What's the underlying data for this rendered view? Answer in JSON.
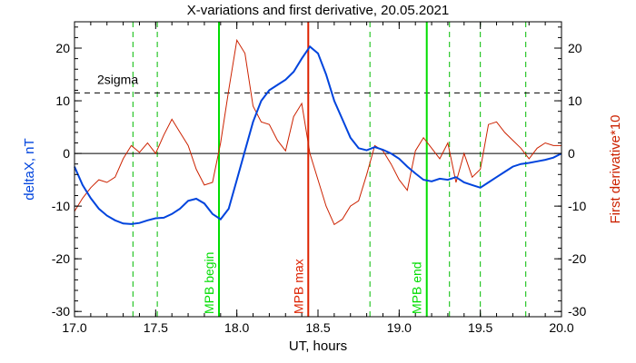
{
  "chart_data": {
    "type": "line",
    "title": "X-variations and first derivative, 20.05.2021",
    "xlabel": "UT, hours",
    "ylabel_left": "deltaX, nT",
    "ylabel_right": "First derivative*10",
    "xlim": [
      17.0,
      20.0
    ],
    "ylim": [
      -31,
      25
    ],
    "x_ticks": [
      17.0,
      17.5,
      18.0,
      18.5,
      19.0,
      19.5,
      20.0
    ],
    "x_tick_labels": [
      "17.0",
      "17.5",
      "18.0",
      "18.5",
      "19.0",
      "19.5",
      "20.0"
    ],
    "y_ticks": [
      -30,
      -20,
      -10,
      0,
      10,
      20
    ],
    "y_tick_labels": [
      "-30",
      "-20",
      "-10",
      "0",
      "10",
      "20"
    ],
    "threshold": {
      "label": "2sigma",
      "value": 11.5
    },
    "series": [
      {
        "name": "deltaX, nT",
        "color": "#0044dd",
        "x": [
          17.0,
          17.05,
          17.1,
          17.15,
          17.2,
          17.25,
          17.3,
          17.35,
          17.4,
          17.45,
          17.5,
          17.55,
          17.6,
          17.65,
          17.7,
          17.75,
          17.8,
          17.85,
          17.9,
          17.95,
          18.0,
          18.05,
          18.1,
          18.15,
          18.2,
          18.25,
          18.3,
          18.35,
          18.4,
          18.45,
          18.5,
          18.55,
          18.6,
          18.65,
          18.7,
          18.75,
          18.8,
          18.85,
          18.9,
          18.95,
          19.0,
          19.05,
          19.1,
          19.15,
          19.2,
          19.25,
          19.3,
          19.35,
          19.4,
          19.45,
          19.5,
          19.55,
          19.6,
          19.65,
          19.7,
          19.75,
          19.8,
          19.85,
          19.9,
          19.95,
          20.0
        ],
        "y": [
          -2.5,
          -6.0,
          -8.5,
          -10.5,
          -11.8,
          -12.7,
          -13.3,
          -13.4,
          -13.2,
          -12.7,
          -12.3,
          -12.2,
          -11.5,
          -10.5,
          -9.0,
          -8.6,
          -9.5,
          -11.5,
          -12.5,
          -10.5,
          -5.0,
          0.5,
          6.0,
          10.0,
          12.0,
          13.0,
          14.0,
          15.5,
          18.0,
          20.3,
          19.0,
          15.0,
          10.0,
          6.5,
          3.0,
          1.0,
          0.6,
          1.2,
          0.7,
          0.0,
          -1.0,
          -2.5,
          -3.8,
          -5.0,
          -5.3,
          -4.8,
          -5.0,
          -4.5,
          -5.5,
          -6.0,
          -6.5,
          -5.5,
          -4.5,
          -3.5,
          -2.5,
          -2.0,
          -1.8,
          -1.5,
          -1.2,
          -0.8,
          0.0
        ]
      },
      {
        "name": "First derivative*10",
        "color": "#cc2200",
        "x": [
          17.0,
          17.05,
          17.1,
          17.15,
          17.2,
          17.25,
          17.3,
          17.35,
          17.4,
          17.45,
          17.5,
          17.55,
          17.6,
          17.65,
          17.7,
          17.75,
          17.8,
          17.85,
          17.9,
          17.95,
          18.0,
          18.05,
          18.1,
          18.15,
          18.2,
          18.25,
          18.3,
          18.35,
          18.4,
          18.45,
          18.5,
          18.55,
          18.6,
          18.65,
          18.7,
          18.75,
          18.8,
          18.85,
          18.9,
          18.95,
          19.0,
          19.05,
          19.1,
          19.15,
          19.2,
          19.25,
          19.3,
          19.35,
          19.4,
          19.45,
          19.5,
          19.55,
          19.6,
          19.65,
          19.7,
          19.75,
          19.8,
          19.85,
          19.9,
          19.95,
          20.0
        ],
        "y": [
          -11.0,
          -8.5,
          -6.5,
          -5.0,
          -5.5,
          -4.5,
          -1.0,
          1.5,
          0.2,
          2.0,
          0.0,
          3.5,
          6.5,
          4.0,
          1.5,
          -3.0,
          -6.0,
          -5.5,
          2.0,
          12.0,
          21.5,
          19.0,
          9.0,
          6.0,
          5.5,
          2.5,
          0.5,
          7.0,
          9.5,
          0.0,
          -5.0,
          -10.0,
          -13.5,
          -12.5,
          -10.0,
          -9.0,
          -4.0,
          1.5,
          0.5,
          -2.0,
          -5.0,
          -7.0,
          0.5,
          3.0,
          1.0,
          -1.0,
          2.0,
          -5.5,
          0.0,
          -4.5,
          -3.0,
          5.5,
          6.0,
          4.0,
          2.5,
          1.0,
          -1.0,
          1.0,
          2.0,
          1.5,
          1.5
        ]
      }
    ],
    "markers": [
      {
        "label": "MPB begin",
        "x": 17.89,
        "color": "#00dd00"
      },
      {
        "label": "MPB max",
        "x": 18.44,
        "color": "#dd2200"
      },
      {
        "label": "MPB end",
        "x": 19.17,
        "color": "#00dd00"
      }
    ],
    "dashed_lines_x": [
      17.36,
      17.51,
      18.82,
      19.31,
      19.5,
      19.78
    ],
    "dashed_color": "#00bb00"
  }
}
